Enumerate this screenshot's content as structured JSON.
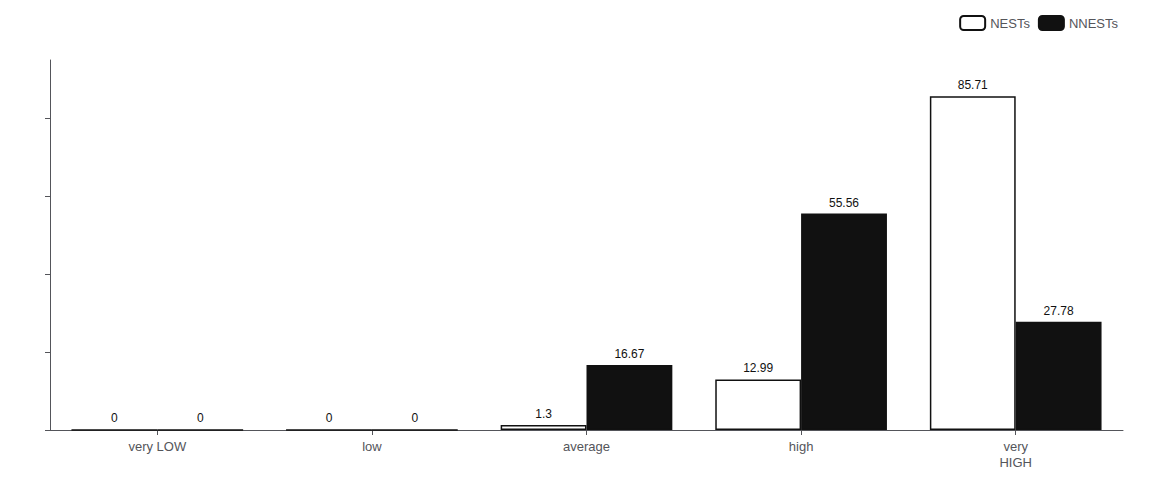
{
  "chart_data": {
    "type": "bar",
    "categories": [
      "very LOW",
      "low",
      "average",
      "high",
      "very\nHIGH"
    ],
    "series": [
      {
        "name": "NESTs",
        "color": "#ffffff",
        "values": [
          0,
          0,
          1.3,
          12.99,
          85.71
        ]
      },
      {
        "name": "NNESTs",
        "color": "#111111",
        "values": [
          0,
          0,
          16.67,
          55.56,
          27.78
        ]
      }
    ],
    "ylim": [
      0,
      95
    ],
    "yticks": [
      0,
      20,
      40,
      60,
      80
    ],
    "grid": false,
    "legend": "upper right",
    "data_labels": true,
    "tick_labels": "x"
  }
}
